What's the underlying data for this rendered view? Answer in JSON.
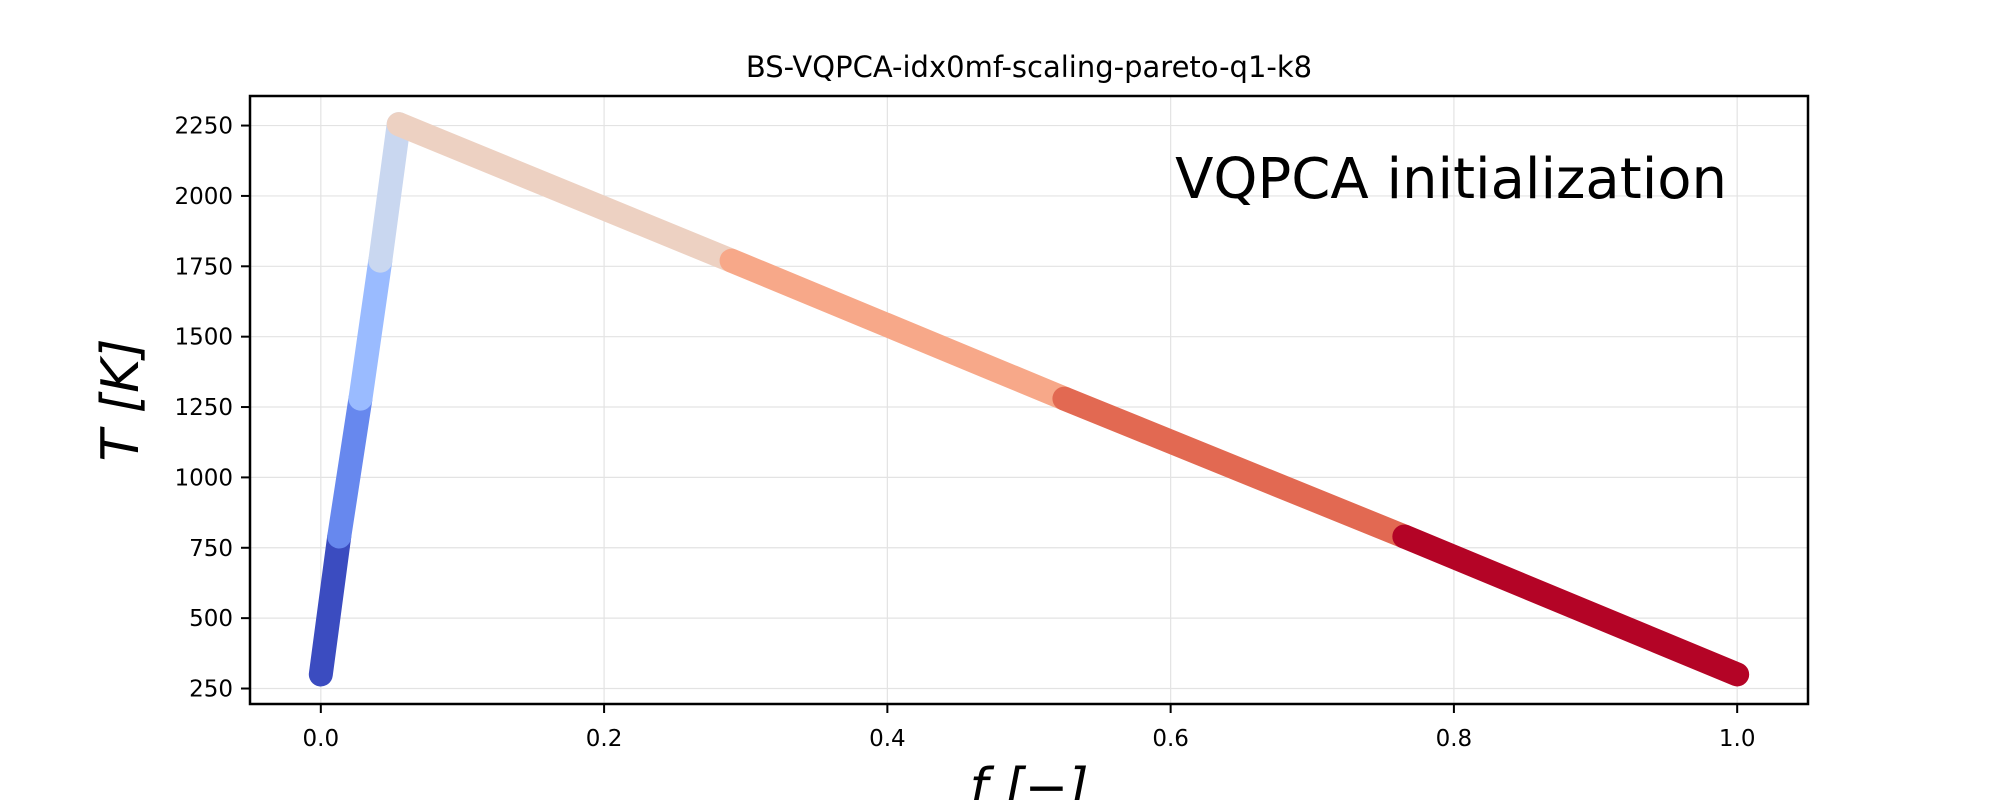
{
  "chart_data": {
    "type": "line",
    "title": "BS-VQPCA-idx0mf-scaling-pareto-q1-k8",
    "xlabel": "f [−]",
    "ylabel": "T [K]",
    "xlim": [
      -0.05,
      1.05
    ],
    "ylim": [
      195,
      2355
    ],
    "xticks": [
      0.0,
      0.2,
      0.4,
      0.6,
      0.8,
      1.0
    ],
    "xtick_labels": [
      "0.0",
      "0.2",
      "0.4",
      "0.6",
      "0.8",
      "1.0"
    ],
    "yticks": [
      250,
      500,
      750,
      1000,
      1250,
      1500,
      1750,
      2000,
      2250
    ],
    "ytick_labels": [
      "250",
      "500",
      "750",
      "1000",
      "1250",
      "1500",
      "1750",
      "2000",
      "2250"
    ],
    "grid": true,
    "annotation": "VQPCA initialization",
    "series": [
      {
        "color": "#3b4cc0",
        "x": [
          0.0,
          0.013
        ],
        "y": [
          300,
          790
        ]
      },
      {
        "color": "#6788ee",
        "x": [
          0.013,
          0.028
        ],
        "y": [
          790,
          1280
        ]
      },
      {
        "color": "#9abbff",
        "x": [
          0.028,
          0.042
        ],
        "y": [
          1280,
          1770
        ]
      },
      {
        "color": "#c9d7f0",
        "x": [
          0.042,
          0.055
        ],
        "y": [
          1770,
          2255
        ]
      },
      {
        "color": "#edd1c2",
        "x": [
          0.055,
          0.29
        ],
        "y": [
          2255,
          1770
        ]
      },
      {
        "color": "#f7a889",
        "x": [
          0.29,
          0.525
        ],
        "y": [
          1770,
          1280
        ]
      },
      {
        "color": "#e26952",
        "x": [
          0.525,
          0.765
        ],
        "y": [
          1280,
          790
        ]
      },
      {
        "color": "#b40426",
        "x": [
          0.765,
          1.0
        ],
        "y": [
          790,
          300
        ]
      }
    ]
  }
}
